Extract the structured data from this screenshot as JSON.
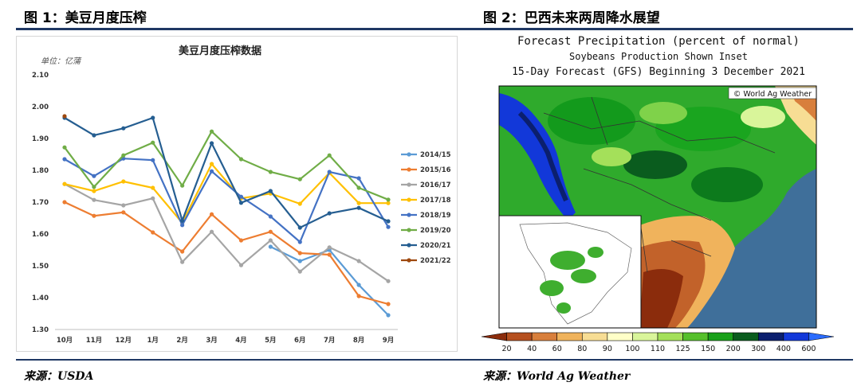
{
  "left_figure": {
    "title": "图 1：美豆月度压榨",
    "source": "来源：USDA"
  },
  "right_figure": {
    "title": "图 2：巴西未来两周降水展望",
    "source": "来源：World Ag Weather"
  },
  "chart_data": [
    {
      "type": "line",
      "title": "美豆月度压榨数据",
      "ylabel": "单位：亿蒲",
      "xlabel": "",
      "categories": [
        "10月",
        "11月",
        "12月",
        "1月",
        "2月",
        "3月",
        "4月",
        "5月",
        "6月",
        "7月",
        "8月",
        "9月"
      ],
      "y_ticks": [
        "2.10",
        "2.00",
        "1.90",
        "1.80",
        "1.70",
        "1.60",
        "1.50",
        "1.40",
        "1.30"
      ],
      "ylim": [
        1.3,
        2.1
      ],
      "grid": false,
      "legend": "right",
      "series": [
        {
          "name": "2014/15",
          "color": "#5b9bd5",
          "values": [
            null,
            null,
            null,
            null,
            null,
            null,
            null,
            1.56,
            1.515,
            1.55,
            1.44,
            1.345
          ]
        },
        {
          "name": "2015/16",
          "color": "#ed7d31",
          "values": [
            1.7,
            1.657,
            1.668,
            1.605,
            1.545,
            1.662,
            1.58,
            1.607,
            1.54,
            1.535,
            1.405,
            1.38
          ]
        },
        {
          "name": "2016/17",
          "color": "#a5a5a5",
          "values": [
            1.757,
            1.707,
            1.69,
            1.712,
            1.512,
            1.607,
            1.502,
            1.58,
            1.482,
            1.558,
            1.515,
            1.452
          ]
        },
        {
          "name": "2017/18",
          "color": "#ffc000",
          "values": [
            1.757,
            1.735,
            1.765,
            1.745,
            1.635,
            1.82,
            1.712,
            1.727,
            1.695,
            1.792,
            1.697,
            1.697
          ]
        },
        {
          "name": "2018/19",
          "color": "#4472c4",
          "values": [
            1.835,
            1.782,
            1.837,
            1.832,
            1.628,
            1.797,
            1.717,
            1.655,
            1.575,
            1.795,
            1.775,
            1.622
          ]
        },
        {
          "name": "2019/20",
          "color": "#70ad47",
          "values": [
            1.872,
            1.748,
            1.847,
            1.887,
            1.752,
            1.922,
            1.835,
            1.795,
            1.772,
            1.847,
            1.745,
            1.708
          ]
        },
        {
          "name": "2020/21",
          "color": "#255e91",
          "values": [
            1.965,
            1.91,
            1.932,
            1.965,
            1.642,
            1.885,
            1.698,
            1.735,
            1.62,
            1.665,
            1.682,
            1.64
          ]
        },
        {
          "name": "2021/22",
          "color": "#9e480e",
          "values": [
            1.97,
            null,
            null,
            null,
            null,
            null,
            null,
            null,
            null,
            null,
            null,
            null
          ]
        }
      ]
    },
    {
      "type": "heatmap",
      "title": "Forecast Precipitation (percent of normal)",
      "subtitle": "Soybeans Production Shown Inset",
      "subtitle2": "15-Day Forecast (GFS) Beginning 3 December 2021",
      "credit": "© World Ag Weather",
      "legend": "bottom",
      "colorbar": {
        "labels": [
          "20",
          "40",
          "60",
          "80",
          "90",
          "100",
          "110",
          "125",
          "150",
          "200",
          "300",
          "400",
          "600"
        ],
        "colors": [
          "#8b2c0c",
          "#b5501f",
          "#d87f3c",
          "#f0b35c",
          "#f7dd94",
          "#ffffc8",
          "#d9f59a",
          "#a4e05a",
          "#56c02c",
          "#19a01a",
          "#0a5c1e",
          "#0b1f6e",
          "#1238d9",
          "#2b6cff"
        ]
      }
    }
  ]
}
